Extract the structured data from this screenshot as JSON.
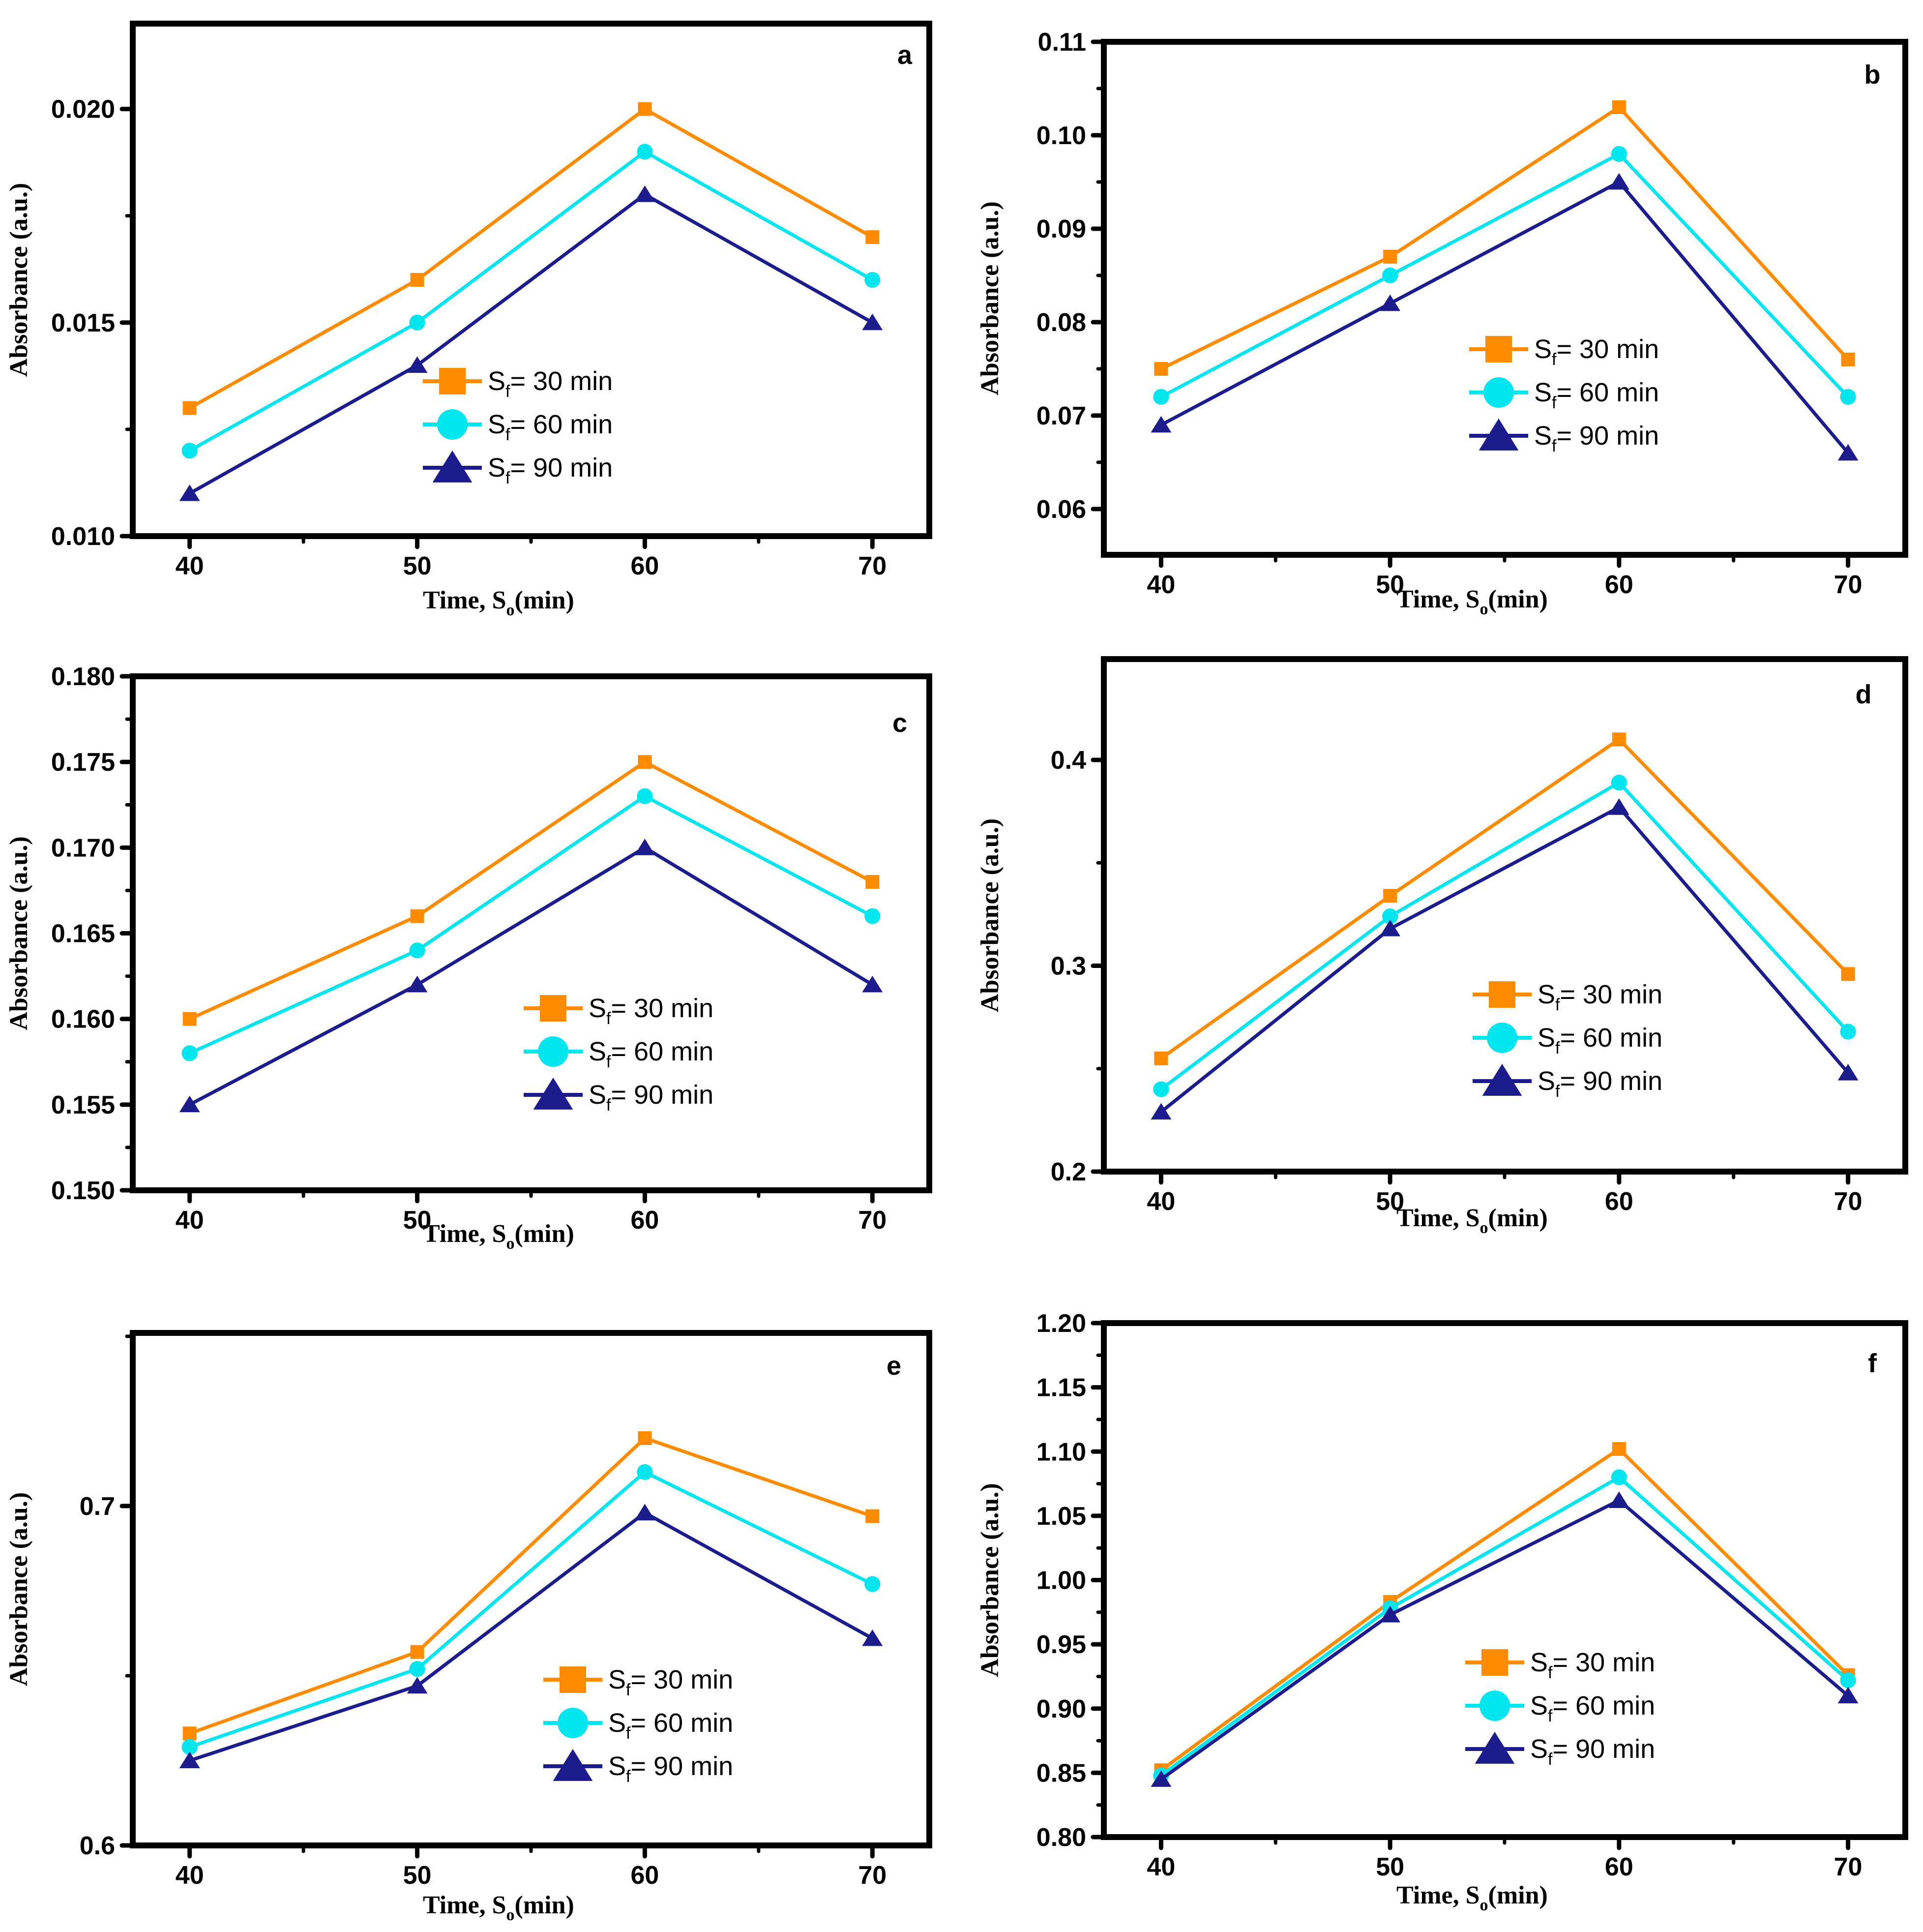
{
  "chart_data": [
    {
      "type": "line",
      "panel_label": "a",
      "categories": [
        "40",
        "50",
        "60",
        "70"
      ],
      "x": [
        40,
        50,
        60,
        70
      ],
      "xlabel": "Time, S",
      "xlabel_sub": "o",
      "xlabel_unit": "(min)",
      "ylabel": "Absorbance (a.u.)",
      "yticks": [
        "0.010",
        "0.015",
        "0.020"
      ],
      "ylim": [
        0.01,
        0.022
      ],
      "series": [
        {
          "name": "30 min",
          "values": [
            0.013,
            0.016,
            0.02,
            0.017
          ]
        },
        {
          "name": "60 min",
          "values": [
            0.012,
            0.015,
            0.019,
            0.016
          ]
        },
        {
          "name": "90 min",
          "values": [
            0.011,
            0.014,
            0.018,
            0.015
          ]
        }
      ],
      "legend_position": "center"
    },
    {
      "type": "line",
      "panel_label": "b",
      "categories": [
        "40",
        "50",
        "60",
        "70"
      ],
      "x": [
        40,
        50,
        60,
        70
      ],
      "xlabel": "Time, S",
      "xlabel_sub": "o",
      "xlabel_unit": "(min)",
      "ylabel": "Absorbance (a.u.)",
      "yticks": [
        "0.06",
        "0.07",
        "0.08",
        "0.09",
        "0.10",
        "0.11"
      ],
      "ylim": [
        0.0551,
        0.11
      ],
      "series": [
        {
          "name": "30 min",
          "values": [
            0.075,
            0.087,
            0.103,
            0.076
          ]
        },
        {
          "name": "60 min",
          "values": [
            0.072,
            0.085,
            0.098,
            0.072
          ]
        },
        {
          "name": "90 min",
          "values": [
            0.069,
            0.082,
            0.095,
            0.066
          ]
        }
      ],
      "legend_position": "center-right"
    },
    {
      "type": "line",
      "panel_label": "c",
      "categories": [
        "40",
        "50",
        "60",
        "70"
      ],
      "x": [
        40,
        50,
        60,
        70
      ],
      "xlabel": "Time, S",
      "xlabel_sub": "o",
      "xlabel_unit": "(min)",
      "ylabel": "Absorbance (a.u.)",
      "yticks": [
        "0.150",
        "0.155",
        "0.160",
        "0.165",
        "0.170",
        "0.175",
        "0.180"
      ],
      "ylim": [
        0.15,
        0.18
      ],
      "series": [
        {
          "name": "30 min",
          "values": [
            0.16,
            0.166,
            0.175,
            0.168
          ]
        },
        {
          "name": "60 min",
          "values": [
            0.158,
            0.164,
            0.173,
            0.166
          ]
        },
        {
          "name": "90 min",
          "values": [
            0.155,
            0.162,
            0.17,
            0.162
          ]
        }
      ],
      "legend_position": "center"
    },
    {
      "type": "line",
      "panel_label": "d",
      "categories": [
        "40",
        "50",
        "60",
        "70"
      ],
      "x": [
        40,
        50,
        60,
        70
      ],
      "xlabel": "Time, S",
      "xlabel_sub": "o",
      "xlabel_unit": "(min)",
      "ylabel": "Absorbance (a.u.)",
      "yticks": [
        "0.2",
        "0.3",
        "0.4"
      ],
      "ylim": [
        0.2,
        0.449
      ],
      "series": [
        {
          "name": "30 min",
          "values": [
            0.255,
            0.334,
            0.41,
            0.296
          ]
        },
        {
          "name": "60 min",
          "values": [
            0.24,
            0.324,
            0.389,
            0.268
          ]
        },
        {
          "name": "90 min",
          "values": [
            0.229,
            0.318,
            0.377,
            0.248
          ]
        }
      ],
      "legend_position": "center-right"
    },
    {
      "type": "line",
      "panel_label": "e",
      "categories": [
        "40",
        "50",
        "60",
        "70"
      ],
      "x": [
        40,
        50,
        60,
        70
      ],
      "xlabel": "Time, S",
      "xlabel_sub": "o",
      "xlabel_unit": "(min)",
      "ylabel": "Absorbance (a.u.)",
      "yticks": [
        "0.6",
        "0.7"
      ],
      "ylim": [
        0.6,
        0.751
      ],
      "series": [
        {
          "name": "30 min",
          "values": [
            0.633,
            0.657,
            0.72,
            0.697
          ]
        },
        {
          "name": "60 min",
          "values": [
            0.629,
            0.652,
            0.71,
            0.677
          ]
        },
        {
          "name": "90 min",
          "values": [
            0.625,
            0.647,
            0.698,
            0.661
          ]
        }
      ],
      "legend_position": "center"
    },
    {
      "type": "line",
      "panel_label": "f",
      "categories": [
        "40",
        "50",
        "60",
        "70"
      ],
      "x": [
        40,
        50,
        60,
        70
      ],
      "xlabel": "Time, S",
      "xlabel_sub": "o",
      "xlabel_unit": "(min)",
      "ylabel": "Absorbance (a.u.)",
      "yticks": [
        "0.80",
        "0.85",
        "0.90",
        "0.95",
        "1.00",
        "1.05",
        "1.10",
        "1.15",
        "1.20"
      ],
      "ylim": [
        0.8,
        1.2
      ],
      "series": [
        {
          "name": "30 min",
          "values": [
            0.852,
            0.983,
            1.102,
            0.926
          ]
        },
        {
          "name": "60 min",
          "values": [
            0.848,
            0.978,
            1.08,
            0.922
          ]
        },
        {
          "name": "90 min",
          "values": [
            0.845,
            0.973,
            1.062,
            0.91
          ]
        }
      ],
      "legend_position": "center-right"
    }
  ],
  "legend": {
    "prefix": "S",
    "subscript": "f",
    "separator": "= ",
    "labels": [
      "30 min",
      "60 min",
      "90 min"
    ]
  },
  "colors": {
    "series_30": "#FF8C00",
    "series_60": "#00E5EE",
    "series_90": "#1C1C8C",
    "axis": "#000000"
  },
  "icons": [
    "square-marker-icon",
    "circle-marker-icon",
    "triangle-marker-icon"
  ]
}
